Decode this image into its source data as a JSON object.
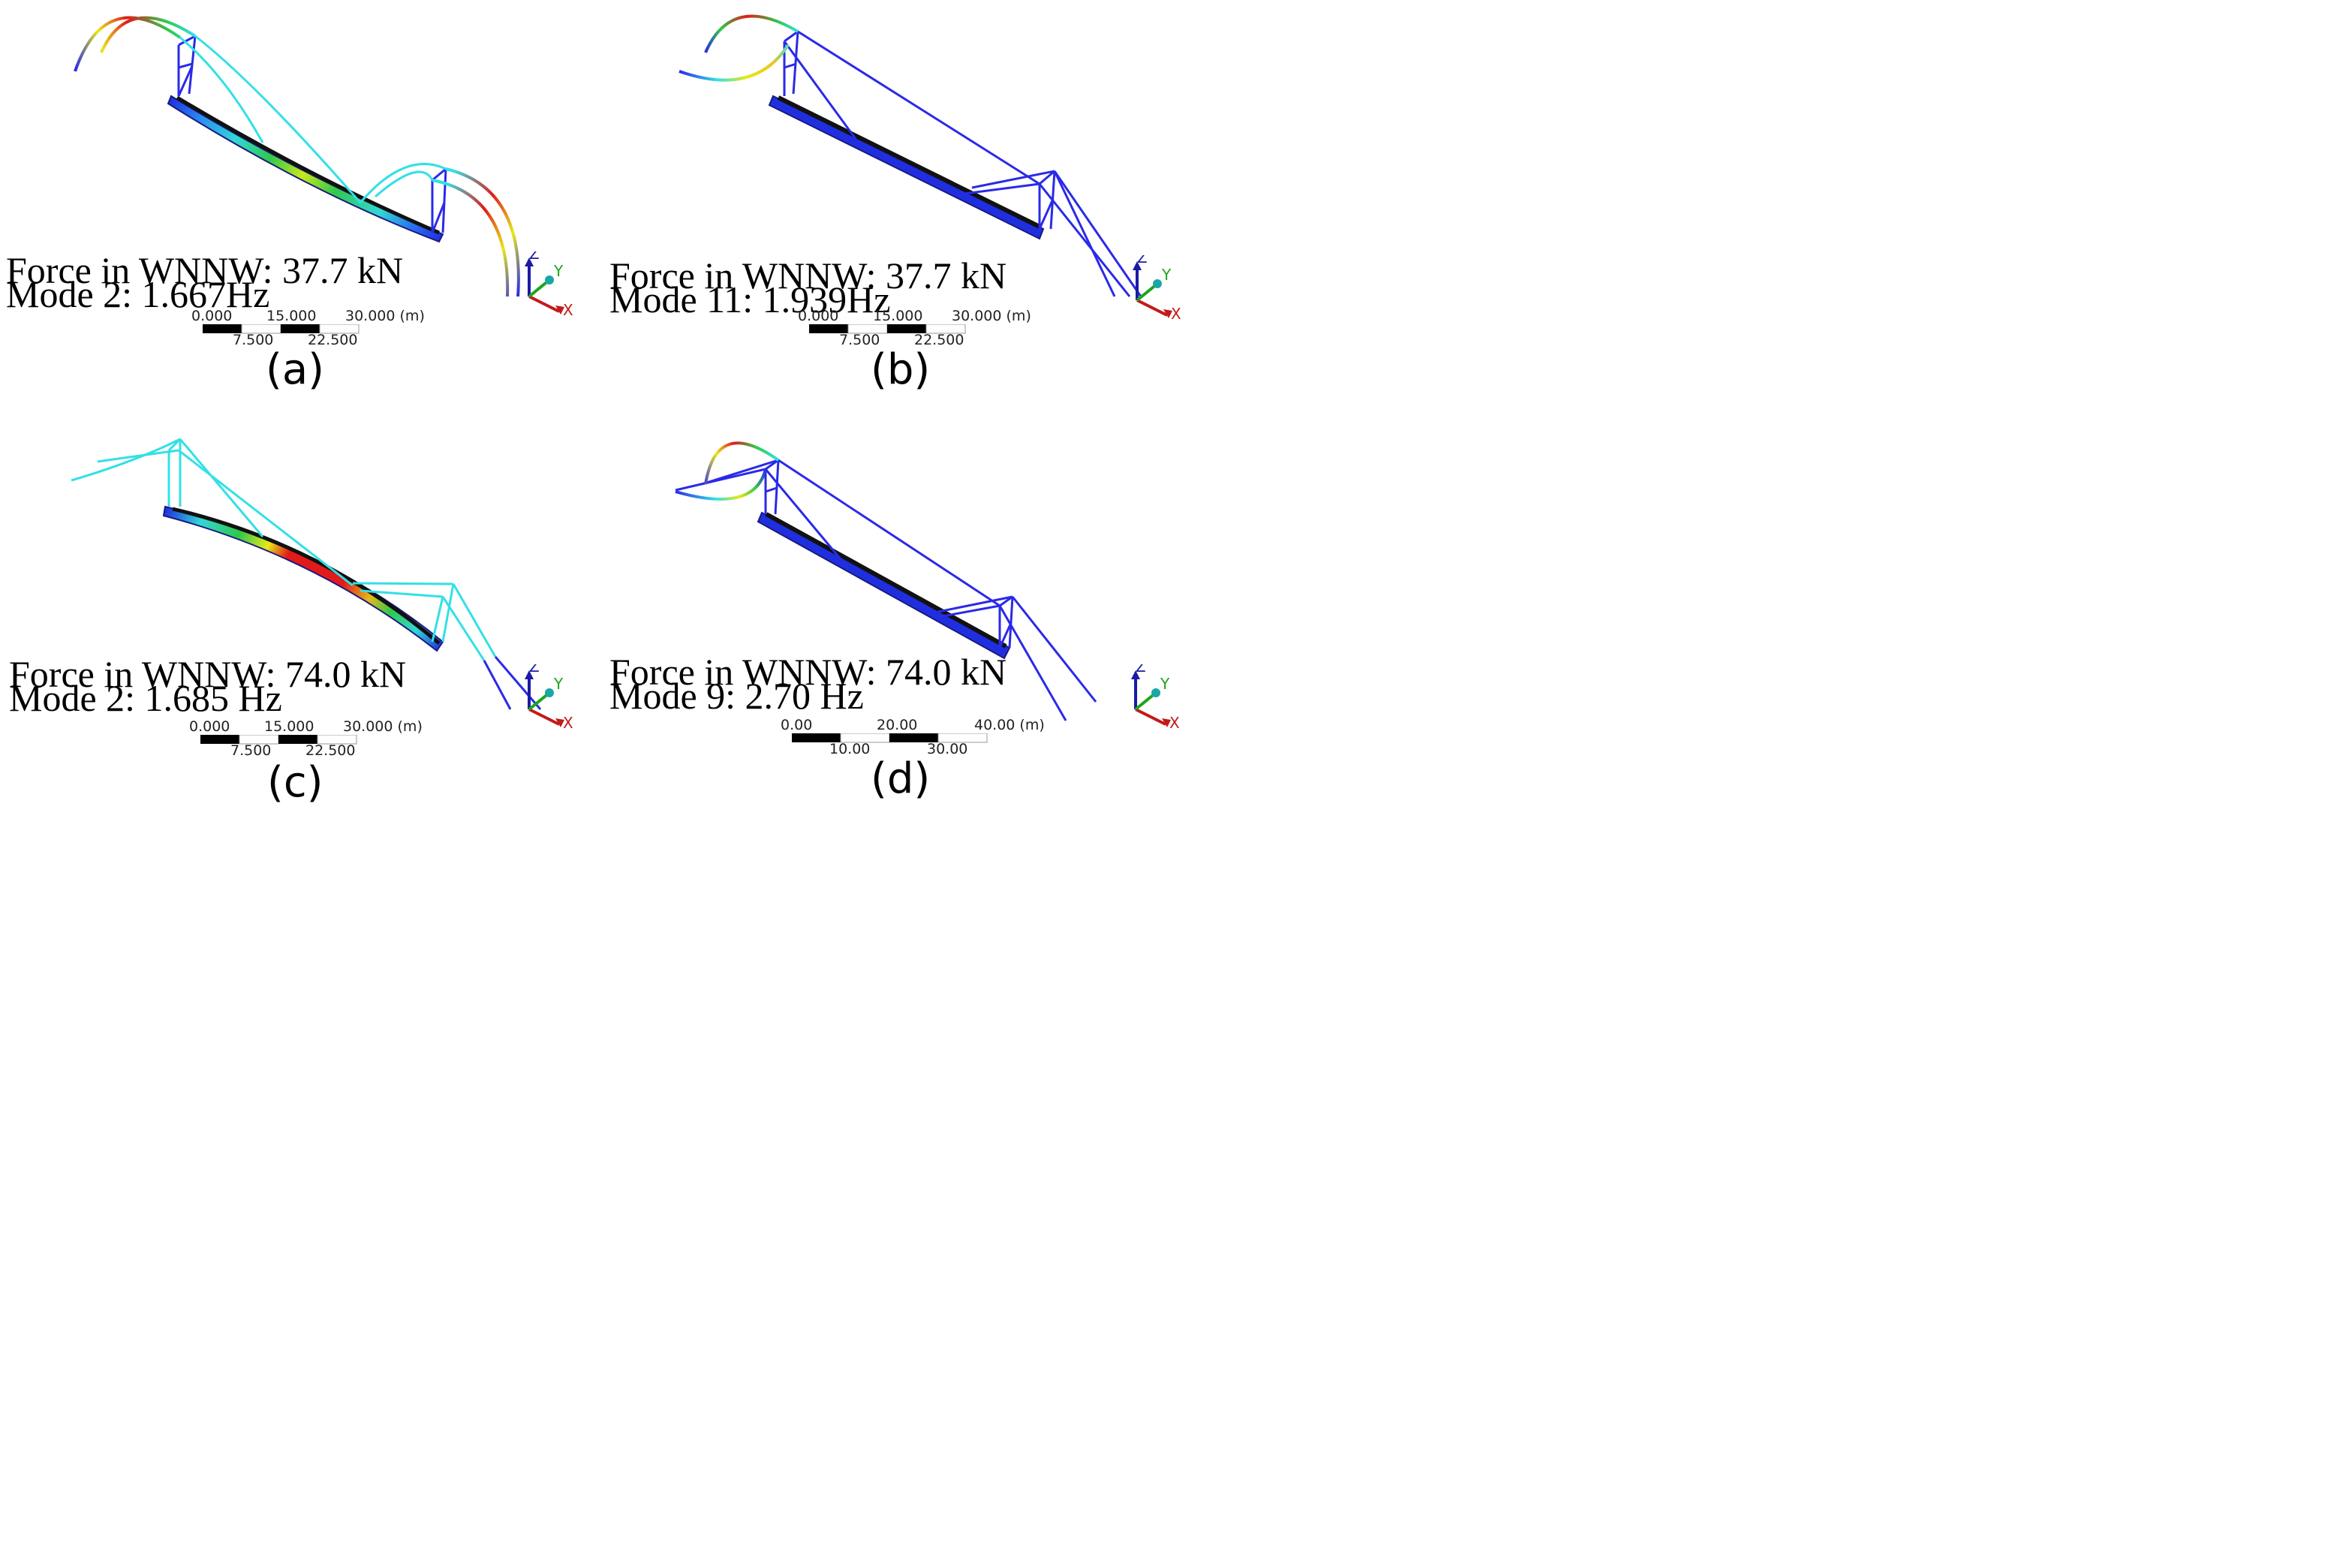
{
  "panels": [
    {
      "id": "a",
      "label": "(a)",
      "force": "Force in WNNW: 37.7 kN",
      "mode": "Mode 2: 1.667Hz",
      "scale": {
        "top": [
          "0.000",
          "15.000",
          "30.000 (m)"
        ],
        "bottom": [
          "7.500",
          "22.500"
        ]
      },
      "axes": {
        "x": "X",
        "y": "Y",
        "z": "Z"
      }
    },
    {
      "id": "b",
      "label": "(b)",
      "force": "Force in WNNW: 37.7 kN",
      "mode": "Mode 11: 1.939Hz",
      "scale": {
        "top": [
          "0.000",
          "15.000",
          "30.000 (m)"
        ],
        "bottom": [
          "7.500",
          "22.500"
        ]
      },
      "axes": {
        "x": "X",
        "y": "Y",
        "z": "Z"
      }
    },
    {
      "id": "c",
      "label": "(c)",
      "force": "Force in WNNW: 74.0 kN",
      "mode": "Mode 2: 1.685 Hz",
      "scale": {
        "top": [
          "0.000",
          "15.000",
          "30.000 (m)"
        ],
        "bottom": [
          "7.500",
          "22.500"
        ]
      },
      "axes": {
        "x": "X",
        "y": "Y",
        "z": "Z"
      }
    },
    {
      "id": "d",
      "label": "(d)",
      "force": "Force in WNNW: 74.0 kN",
      "mode": "Mode 9: 2.70 Hz",
      "scale": {
        "top": [
          "0.00",
          "20.00",
          "40.00 (m)"
        ],
        "bottom": [
          "10.00",
          "30.00"
        ]
      },
      "axes": {
        "x": "X",
        "y": "Y",
        "z": "Z"
      }
    }
  ],
  "colors": {
    "deck_blue": "#1f2fe0",
    "cable_blue": "#2a2ae8",
    "cyan": "#33e0e6",
    "green": "#2fc94a",
    "yellow": "#e8e81a",
    "red": "#e21a1a",
    "axis_x": "#c41a1a",
    "axis_y": "#1aa61a",
    "axis_z": "#1a1aa6"
  }
}
